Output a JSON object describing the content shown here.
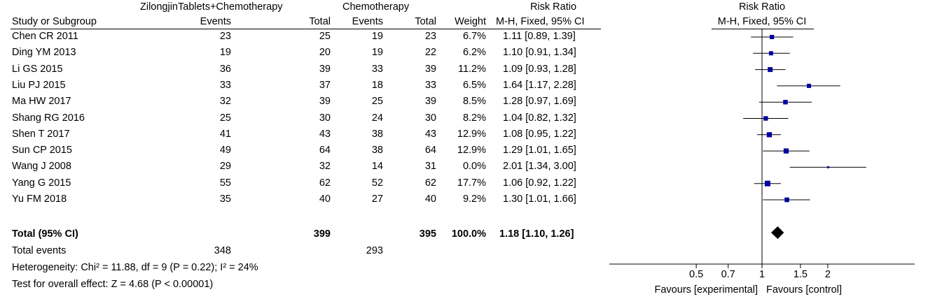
{
  "header": {
    "group_experimental": "ZilongjinTablets+Chemotherapy",
    "group_control": "Chemotherapy",
    "risk_ratio": "Risk Ratio",
    "col_study": "Study or Subgroup",
    "col_events_exp": "Events",
    "col_total_exp": "Total",
    "col_events_ctrl": "Events",
    "col_total_ctrl": "Total",
    "col_weight": "Weight",
    "col_method": "M-H, Fixed, 95% CI",
    "plot_title": "Risk Ratio",
    "plot_method": "M-H, Fixed, 95% CI"
  },
  "studies": [
    {
      "name": "Chen CR 2011",
      "e1": "23",
      "n1": "25",
      "e2": "19",
      "n2": "23",
      "weight": "6.7%",
      "ci": "1.11 [0.89, 1.39]"
    },
    {
      "name": "Ding YM 2013",
      "e1": "19",
      "n1": "20",
      "e2": "19",
      "n2": "22",
      "weight": "6.2%",
      "ci": "1.10 [0.91, 1.34]"
    },
    {
      "name": "Li GS 2015",
      "e1": "36",
      "n1": "39",
      "e2": "33",
      "n2": "39",
      "weight": "11.2%",
      "ci": "1.09 [0.93, 1.28]"
    },
    {
      "name": "Liu PJ 2015",
      "e1": "33",
      "n1": "37",
      "e2": "18",
      "n2": "33",
      "weight": "6.5%",
      "ci": "1.64 [1.17, 2.28]"
    },
    {
      "name": "Ma HW 2017",
      "e1": "32",
      "n1": "39",
      "e2": "25",
      "n2": "39",
      "weight": "8.5%",
      "ci": "1.28 [0.97, 1.69]"
    },
    {
      "name": "Shang RG 2016",
      "e1": "25",
      "n1": "30",
      "e2": "24",
      "n2": "30",
      "weight": "8.2%",
      "ci": "1.04 [0.82, 1.32]"
    },
    {
      "name": "Shen T 2017",
      "e1": "41",
      "n1": "43",
      "e2": "38",
      "n2": "43",
      "weight": "12.9%",
      "ci": "1.08 [0.95, 1.22]"
    },
    {
      "name": "Sun CP 2015",
      "e1": "49",
      "n1": "64",
      "e2": "38",
      "n2": "64",
      "weight": "12.9%",
      "ci": "1.29 [1.01, 1.65]"
    },
    {
      "name": "Wang J 2008",
      "e1": "29",
      "n1": "32",
      "e2": "14",
      "n2": "31",
      "weight": "0.0%",
      "ci": "2.01 [1.34, 3.00]"
    },
    {
      "name": "Yang G 2015",
      "e1": "55",
      "n1": "62",
      "e2": "52",
      "n2": "62",
      "weight": "17.7%",
      "ci": "1.06 [0.92, 1.22]"
    },
    {
      "name": "Yu FM 2018",
      "e1": "35",
      "n1": "40",
      "e2": "27",
      "n2": "40",
      "weight": "9.2%",
      "ci": "1.30 [1.01, 1.66]"
    }
  ],
  "total": {
    "label": "Total (95% CI)",
    "n1": "399",
    "n2": "395",
    "weight": "100.0%",
    "ci": "1.18 [1.10, 1.26]"
  },
  "total_events": {
    "label": "Total events",
    "e1": "348",
    "e2": "293"
  },
  "heterogeneity": "Heterogeneity: Chi² = 11.88, df = 9 (P = 0.22); I² = 24%",
  "overall_effect": "Test for overall effect: Z = 4.68 (P < 0.00001)",
  "axis": {
    "ticks": [
      0.5,
      0.7,
      1,
      1.5,
      2
    ],
    "tick_labels": [
      "0.5",
      "0.7",
      "1",
      "1.5",
      "2"
    ],
    "favours_left": "Favours [experimental]",
    "favours_right": "Favours [control]"
  },
  "chart_data": {
    "type": "forest",
    "scale": "log",
    "xlim": [
      0.2,
      5
    ],
    "reference_line": 1,
    "marker_color": "#0000a0",
    "categories": [
      "Chen CR 2011",
      "Ding YM 2013",
      "Li GS 2015",
      "Liu PJ 2015",
      "Ma HW 2017",
      "Shang RG 2016",
      "Shen T 2017",
      "Sun CP 2015",
      "Wang J 2008",
      "Yang G 2015",
      "Yu FM 2018"
    ],
    "estimate": [
      1.11,
      1.1,
      1.09,
      1.64,
      1.28,
      1.04,
      1.08,
      1.29,
      2.01,
      1.06,
      1.3
    ],
    "lower": [
      0.89,
      0.91,
      0.93,
      1.17,
      0.97,
      0.82,
      0.95,
      1.01,
      1.34,
      0.92,
      1.01
    ],
    "upper": [
      1.39,
      1.34,
      1.28,
      2.28,
      1.69,
      1.32,
      1.22,
      1.65,
      3.0,
      1.22,
      1.66
    ],
    "weights": [
      6.7,
      6.2,
      11.2,
      6.5,
      8.5,
      8.2,
      12.9,
      12.9,
      0.0,
      17.7,
      9.2
    ],
    "pooled": {
      "estimate": 1.18,
      "lower": 1.1,
      "upper": 1.26
    }
  }
}
